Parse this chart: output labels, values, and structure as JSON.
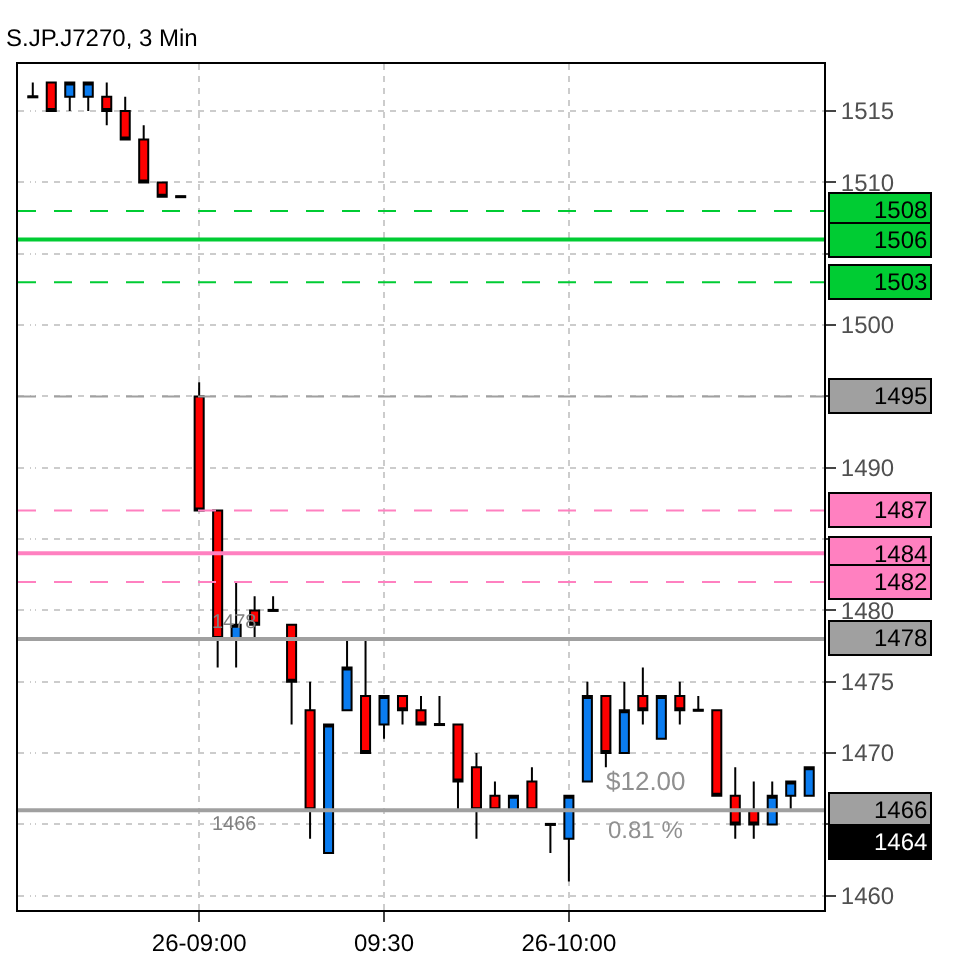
{
  "chart_data": {
    "type": "candlestick",
    "title": "S.JP.J7270, 3 Min",
    "categories": [
      null,
      null,
      null,
      null,
      null,
      null,
      null,
      null,
      null,
      "26-09:00",
      null,
      null,
      null,
      null,
      null,
      null,
      null,
      null,
      null,
      "09:30",
      null,
      null,
      null,
      null,
      null,
      null,
      null,
      null,
      null,
      "26-10:00",
      null,
      null,
      null,
      null,
      null,
      null,
      null,
      null,
      null,
      null,
      null,
      null,
      null
    ],
    "ohlc": [
      [
        1516,
        1517,
        1516,
        1516
      ],
      [
        1517,
        1517,
        1515,
        1515
      ],
      [
        1516,
        1517,
        1515,
        1517
      ],
      [
        1516,
        1517,
        1515,
        1517
      ],
      [
        1516,
        1517,
        1514,
        1515
      ],
      [
        1515,
        1516,
        1513,
        1513
      ],
      [
        1513,
        1514,
        1510,
        1510
      ],
      [
        1510,
        1510,
        1509,
        1509
      ],
      [
        1509,
        1509,
        1509,
        1509
      ],
      [
        1495,
        1496,
        1487,
        1487
      ],
      [
        1487,
        1487,
        1476,
        1478
      ],
      [
        1478,
        1482,
        1476,
        1479
      ],
      [
        1480,
        1481,
        1478,
        1479
      ],
      [
        1480,
        1481,
        1480,
        1480
      ],
      [
        1479,
        1479,
        1472,
        1475
      ],
      [
        1473,
        1475,
        1464,
        1466
      ],
      [
        1463,
        1472,
        1463,
        1472
      ],
      [
        1473,
        1478,
        1473,
        1476
      ],
      [
        1474,
        1478,
        1470,
        1470
      ],
      [
        1472,
        1474,
        1471,
        1474
      ],
      [
        1474,
        1474,
        1472,
        1473
      ],
      [
        1473,
        1474,
        1472,
        1472
      ],
      [
        1472,
        1474,
        1472,
        1472
      ],
      [
        1472,
        1472,
        1466,
        1468
      ],
      [
        1469,
        1470,
        1464,
        1466
      ],
      [
        1467,
        1468,
        1466,
        1466
      ],
      [
        1466,
        1467,
        1466,
        1467
      ],
      [
        1468,
        1469,
        1466,
        1466
      ],
      [
        1465,
        1465,
        1463,
        1465
      ],
      [
        1464,
        1467,
        1461,
        1467
      ],
      [
        1468,
        1475,
        1468,
        1474
      ],
      [
        1474,
        1474,
        1469,
        1470
      ],
      [
        1470,
        1475,
        1470,
        1473
      ],
      [
        1474,
        1476,
        1472,
        1473
      ],
      [
        1471,
        1474,
        1471,
        1474
      ],
      [
        1474,
        1475,
        1472,
        1473
      ],
      [
        1473,
        1474,
        1473,
        1473
      ],
      [
        1473,
        1473,
        1467,
        1467
      ],
      [
        1467,
        1469,
        1464,
        1465
      ],
      [
        1466,
        1468,
        1464,
        1465
      ],
      [
        1465,
        1468,
        1465,
        1467
      ],
      [
        1467,
        1468,
        1466,
        1468
      ],
      [
        1467,
        1469,
        1467,
        1469
      ]
    ],
    "colors": [
      "#000000",
      "#ff0000",
      "#0a7cf0",
      "#0a7cf0",
      "#ff0000",
      "#ff0000",
      "#ff0000",
      "#ff0000",
      "#000000",
      "#ff0000",
      "#ff0000",
      "#0a7cf0",
      "#ff0000",
      "#000000",
      "#ff0000",
      "#ff0000",
      "#0a7cf0",
      "#0a7cf0",
      "#ff0000",
      "#0a7cf0",
      "#ff0000",
      "#ff0000",
      "#000000",
      "#ff0000",
      "#ff0000",
      "#ff0000",
      "#0a7cf0",
      "#ff0000",
      "#000000",
      "#0a7cf0",
      "#0a7cf0",
      "#ff0000",
      "#0a7cf0",
      "#ff0000",
      "#0a7cf0",
      "#ff0000",
      "#000000",
      "#ff0000",
      "#ff0000",
      "#ff0000",
      "#0a7cf0",
      "#0a7cf0",
      "#0a7cf0"
    ],
    "ylim": [
      1459,
      1518.3
    ],
    "yticks": [
      1460,
      {
        "value": 1465,
        "label": null
      },
      1470,
      1475,
      1480,
      {
        "value": 1485,
        "label": null
      },
      1490,
      {
        "value": 1495,
        "label": null
      },
      1500,
      {
        "value": 1505,
        "label": null
      },
      1510,
      1515
    ],
    "grid": true,
    "ref_lines": [
      {
        "axis": "y",
        "value": 1508,
        "label": "1508",
        "color": "#00cc33",
        "line_style": "dashed"
      },
      {
        "axis": "y",
        "value": 1506,
        "label": "1506",
        "color": "#00cc33",
        "line_style": "solid"
      },
      {
        "axis": "y",
        "value": 1503,
        "label": "1503",
        "color": "#00cc33",
        "line_style": "dashed"
      },
      {
        "axis": "y",
        "value": 1495,
        "label": "1495",
        "color": "#a0a0a0",
        "line_style": "dashed"
      },
      {
        "axis": "y",
        "value": 1487,
        "label": "1487",
        "color": "#ff80c0",
        "line_style": "dashed"
      },
      {
        "axis": "y",
        "value": 1484,
        "label": "1484",
        "color": "#ff80c0",
        "line_style": "solid"
      },
      {
        "axis": "y",
        "value": 1482,
        "label": "1482",
        "color": "#ff80c0",
        "line_style": "dashed"
      },
      {
        "axis": "y",
        "value": 1478,
        "label": "1478",
        "color": "#a0a0a0",
        "line_style": "solid"
      },
      {
        "axis": "y",
        "value": 1466,
        "label": "1466",
        "color": "#a0a0a0",
        "line_style": "solid"
      }
    ],
    "annotations": [
      {
        "text": "1478",
        "y": 1478
      },
      {
        "text": "1466",
        "y": 1466
      },
      "$12.00",
      "0.81 %",
      "1464"
    ]
  }
}
